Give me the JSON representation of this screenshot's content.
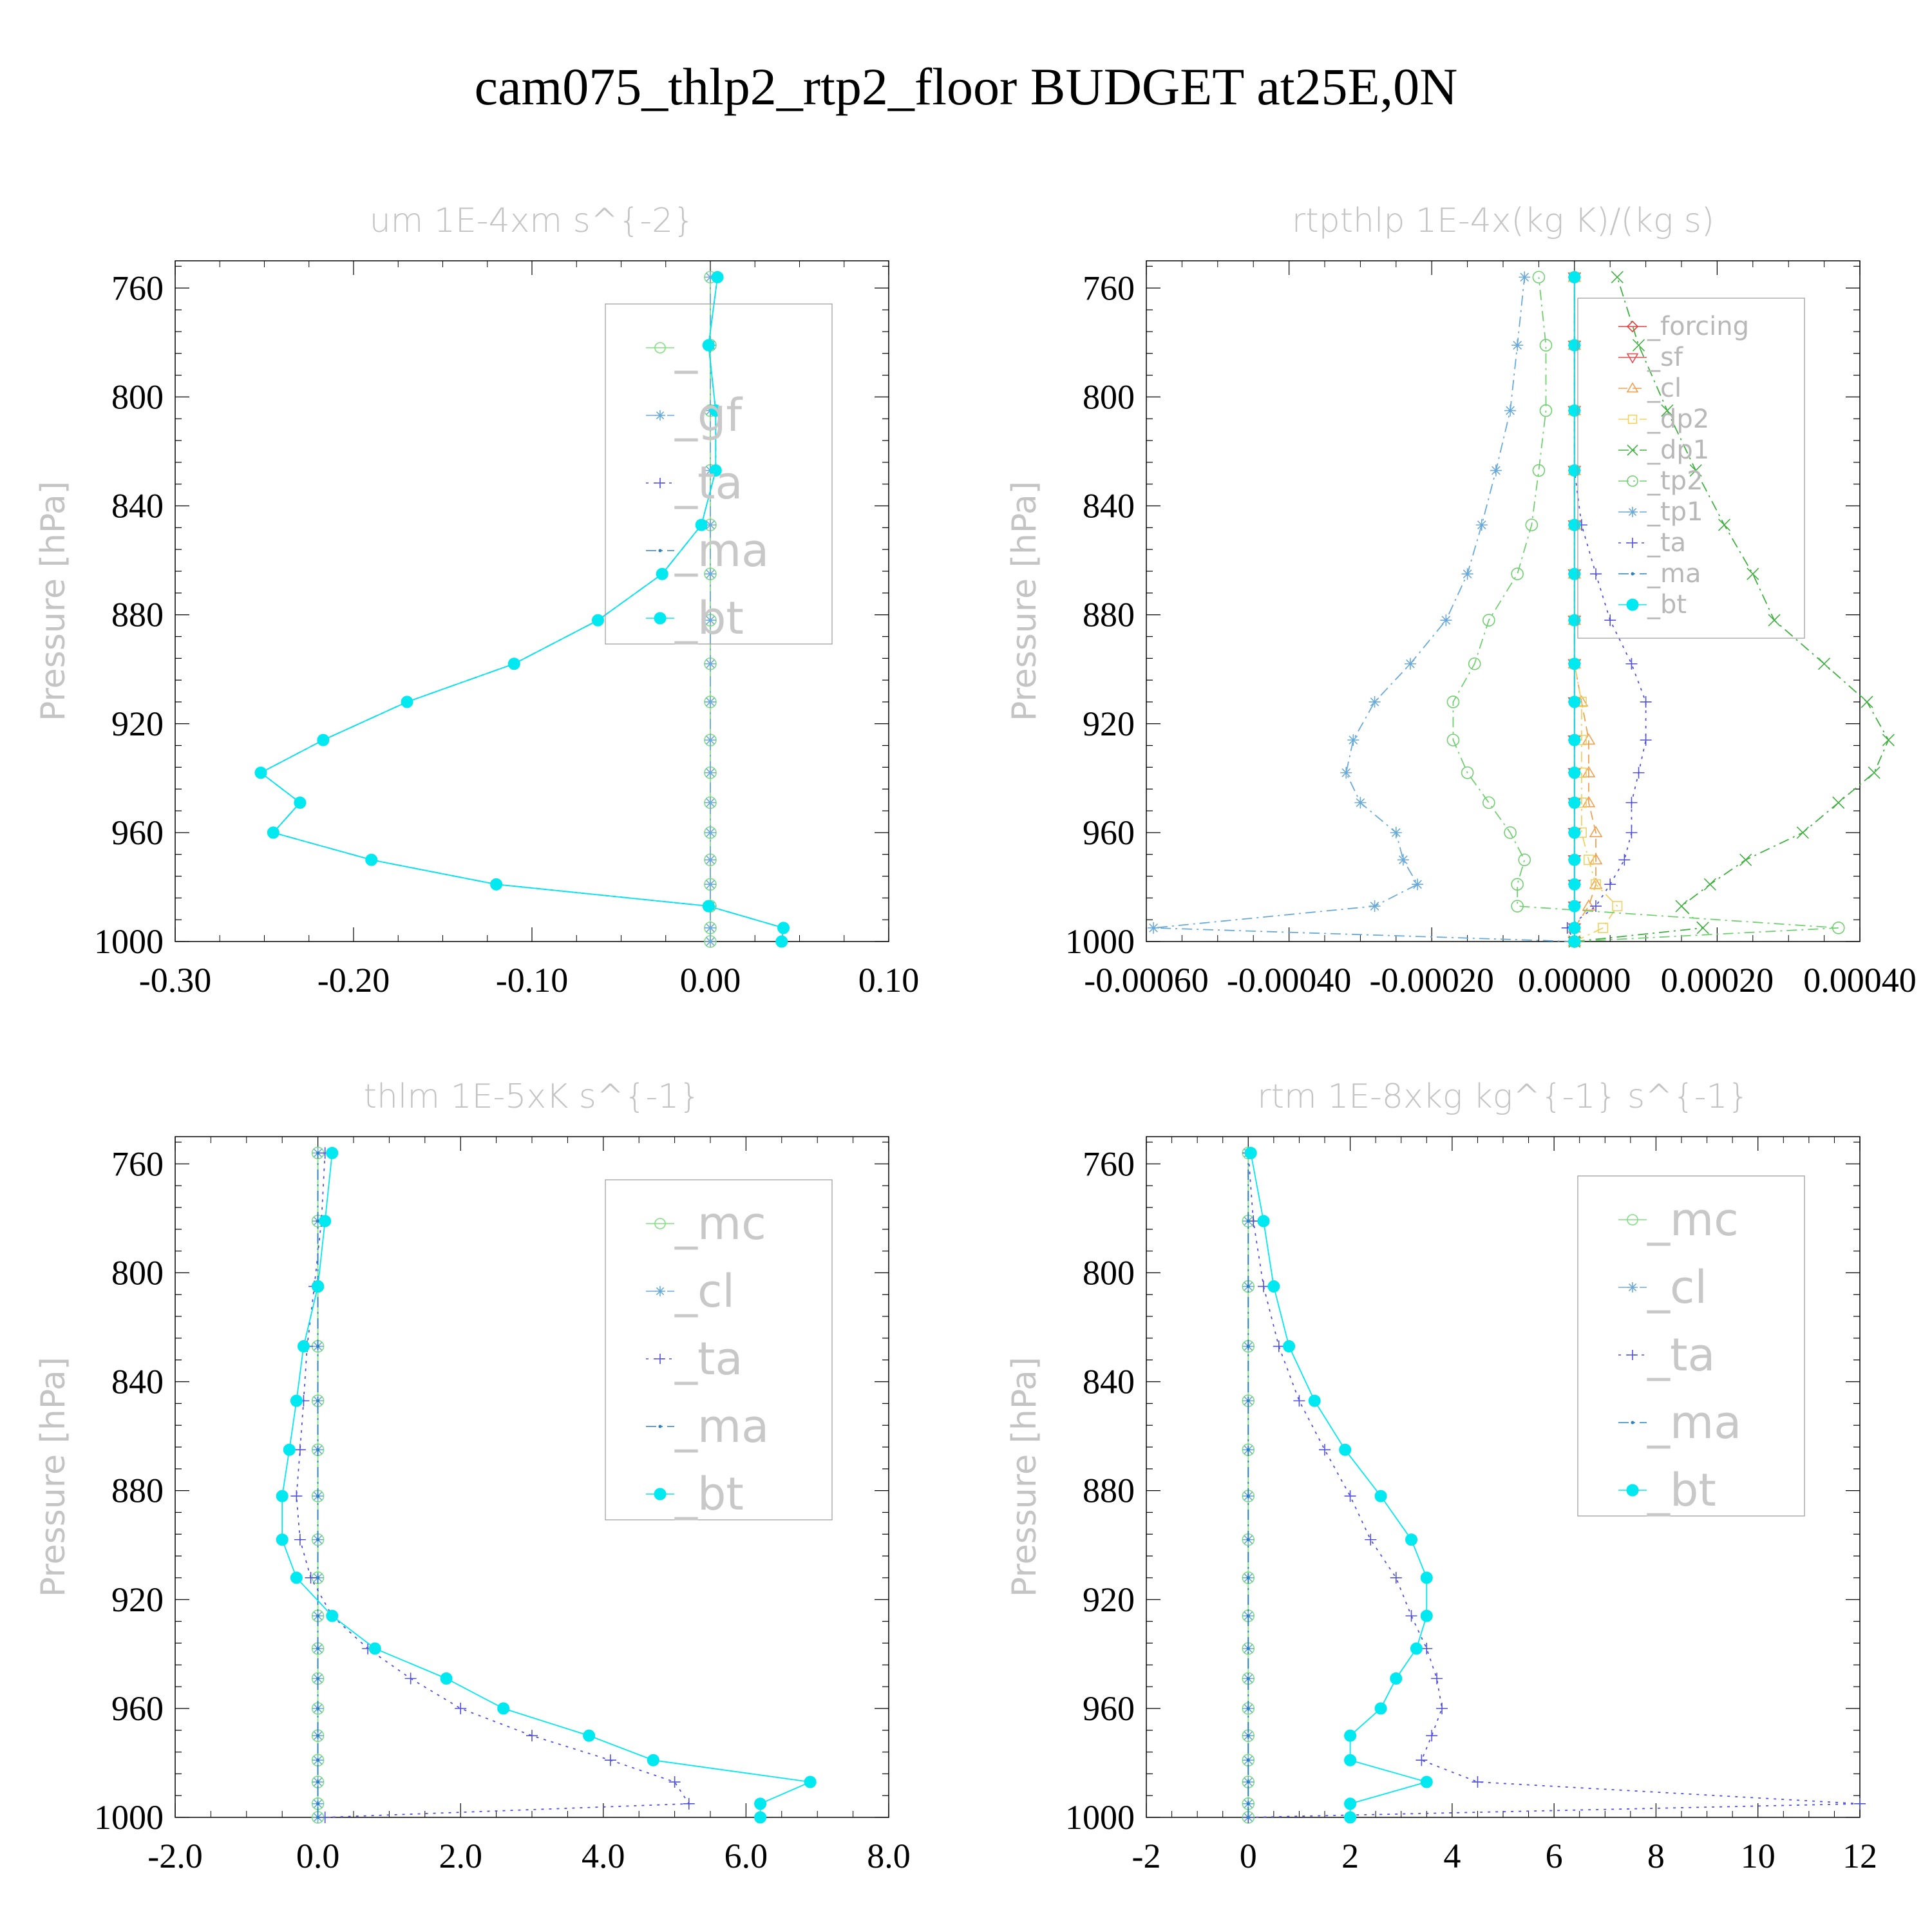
{
  "title": "cam075_thlp2_rtp2_floor  BUDGET at25E,0N",
  "chart_data": [
    {
      "type": "line",
      "title": "um  1E-4xm s^{-2}",
      "ylabel": "Pressure [hPa]",
      "xlim": [
        -0.3,
        0.1
      ],
      "ylim": [
        1000,
        750
      ],
      "xticks": [
        "-0.30",
        "-0.20",
        "-0.10",
        "0.00",
        "0.10"
      ],
      "xtick_values": [
        -0.3,
        -0.2,
        -0.1,
        0.0,
        0.1
      ],
      "yticks": [
        "760",
        "800",
        "840",
        "880",
        "920",
        "960",
        "1000"
      ],
      "yminor_step": 8,
      "legend_style": "big",
      "legend": [
        "_",
        "_gf",
        "_ta",
        "_ma",
        "_bt"
      ],
      "y": [
        1000,
        995,
        987,
        979,
        970,
        960,
        949,
        938,
        926,
        912,
        898,
        882,
        865,
        847,
        827,
        805,
        781,
        756
      ],
      "series": [
        {
          "name": "_",
          "color": "#80e080",
          "marker": "circle-open",
          "dash": "solid",
          "values": [
            0,
            0,
            0,
            0,
            0,
            0,
            0,
            0,
            0,
            0,
            0,
            0,
            0,
            0,
            0,
            0,
            0,
            0
          ]
        },
        {
          "name": "_gf",
          "color": "#6aaad8",
          "marker": "asterisk",
          "dash": "dashdot",
          "values": [
            0,
            0,
            0,
            0,
            0,
            0,
            0,
            0,
            0,
            0,
            0,
            0,
            0,
            0,
            0,
            0,
            0,
            0
          ]
        },
        {
          "name": "_ta",
          "color": "#5050e0",
          "marker": "plus",
          "dash": "dot",
          "values": [
            0.04,
            0.041,
            -0.001,
            -0.12,
            -0.19,
            -0.245,
            -0.23,
            -0.252,
            -0.217,
            -0.17,
            -0.11,
            -0.063,
            -0.027,
            -0.005,
            0.003,
            0.003,
            -0.001,
            0.004
          ]
        },
        {
          "name": "_ma",
          "color": "#2a80c0",
          "marker": "dot",
          "dash": "dashdot",
          "values": [
            0.04,
            0.041,
            -0.001,
            -0.12,
            -0.19,
            -0.245,
            -0.23,
            -0.252,
            -0.217,
            -0.17,
            -0.11,
            -0.063,
            -0.027,
            -0.005,
            0.003,
            0.003,
            -0.001,
            0.004
          ]
        },
        {
          "name": "_bt",
          "color": "#00e8f0",
          "marker": "filled",
          "dash": "solid",
          "values": [
            0.04,
            0.041,
            -0.001,
            -0.12,
            -0.19,
            -0.245,
            -0.23,
            -0.252,
            -0.217,
            -0.17,
            -0.11,
            -0.063,
            -0.027,
            -0.005,
            0.003,
            0.003,
            -0.001,
            0.004
          ]
        }
      ]
    },
    {
      "type": "line",
      "title": "rtpthlp  1E-4x(kg K)/(kg s)",
      "ylabel": "Pressure [hPa]",
      "xlim": [
        -0.0006,
        0.0004
      ],
      "ylim": [
        1000,
        750
      ],
      "xticks": [
        "-0.00060",
        "-0.00040",
        "-0.00020",
        "0.00000",
        "0.00020",
        "0.00040"
      ],
      "xtick_values": [
        -0.0006,
        -0.0004,
        -0.0002,
        0.0,
        0.0002,
        0.0004
      ],
      "yticks": [
        "760",
        "800",
        "840",
        "880",
        "920",
        "960",
        "1000"
      ],
      "yminor_step": 8,
      "legend_style": "small",
      "legend": [
        "_forcing",
        "_sf",
        "_cl",
        "_dp2",
        "_dp1",
        "_tp2",
        "_tp1",
        "_ta",
        "_ma",
        "_bt"
      ],
      "y": [
        1000,
        995,
        987,
        979,
        970,
        960,
        949,
        938,
        926,
        912,
        898,
        882,
        865,
        847,
        827,
        805,
        781,
        756
      ],
      "series": [
        {
          "name": "_forcing",
          "color": "#e04040",
          "marker": "diamond",
          "dash": "solid",
          "values": [
            0,
            0,
            0,
            0,
            0,
            0,
            0,
            0,
            0,
            0,
            0,
            0,
            0,
            0,
            0,
            0,
            0,
            0
          ]
        },
        {
          "name": "_sf",
          "color": "#e05050",
          "marker": "tri-down",
          "dash": "solid",
          "values": [
            0,
            0,
            0,
            0,
            0,
            0,
            0,
            0,
            0,
            0,
            0,
            0,
            0,
            0,
            0,
            0,
            0,
            0
          ]
        },
        {
          "name": "_cl",
          "color": "#f0a050",
          "marker": "tri-up",
          "dash": "dash",
          "values": [
            0,
            0,
            2e-05,
            3e-05,
            3e-05,
            3e-05,
            2e-05,
            2e-05,
            2e-05,
            1e-05,
            0,
            0,
            0,
            0,
            0,
            0,
            0,
            0
          ]
        },
        {
          "name": "_dp2",
          "color": "#f0d060",
          "marker": "square",
          "dash": "dashdot",
          "values": [
            0,
            4e-05,
            6e-05,
            3e-05,
            2e-05,
            1e-05,
            1e-05,
            1e-05,
            1e-05,
            1e-05,
            0,
            0,
            0,
            0,
            0,
            0,
            0,
            0
          ]
        },
        {
          "name": "_dp1",
          "color": "#40b040",
          "marker": "x",
          "dash": "dashdot",
          "values": [
            0,
            0.00018,
            0.00015,
            0.00019,
            0.00024,
            0.00032,
            0.00037,
            0.00042,
            0.00044,
            0.00041,
            0.00035,
            0.00028,
            0.00025,
            0.00021,
            0.00017,
            0.00013,
            9e-05,
            6e-05
          ]
        },
        {
          "name": "_tp2",
          "color": "#70d070",
          "marker": "circle-open",
          "dash": "dashdot",
          "values": [
            0,
            0.00037,
            -8e-05,
            -8e-05,
            -7e-05,
            -9e-05,
            -0.00012,
            -0.00015,
            -0.00017,
            -0.00017,
            -0.00014,
            -0.00012,
            -8e-05,
            -6e-05,
            -5e-05,
            -4e-05,
            -4e-05,
            -5e-05
          ]
        },
        {
          "name": "_tp1",
          "color": "#6aaad8",
          "marker": "asterisk",
          "dash": "dashdot",
          "values": [
            0,
            -0.00059,
            -0.00028,
            -0.00022,
            -0.00024,
            -0.00025,
            -0.0003,
            -0.00032,
            -0.00031,
            -0.00028,
            -0.00023,
            -0.00018,
            -0.00015,
            -0.00013,
            -0.00011,
            -9e-05,
            -8e-05,
            -7e-05
          ]
        },
        {
          "name": "_ta",
          "color": "#5050e0",
          "marker": "plus",
          "dash": "dot",
          "values": [
            0,
            -1e-05,
            3e-05,
            5e-05,
            7e-05,
            8e-05,
            8e-05,
            9e-05,
            0.0001,
            0.0001,
            8e-05,
            5e-05,
            3e-05,
            1e-05,
            0,
            0,
            0,
            0
          ]
        },
        {
          "name": "_ma",
          "color": "#2a80c0",
          "marker": "dot",
          "dash": "dashdot",
          "values": [
            0,
            0,
            0,
            0,
            0,
            0,
            0,
            0,
            0,
            0,
            0,
            0,
            0,
            0,
            0,
            0,
            0,
            0
          ]
        },
        {
          "name": "_bt",
          "color": "#00e8f0",
          "marker": "filled",
          "dash": "solid",
          "values": [
            0,
            0,
            0,
            0,
            0,
            0,
            0,
            0,
            0,
            0,
            0,
            0,
            0,
            0,
            0,
            0,
            0,
            0
          ]
        }
      ]
    },
    {
      "type": "line",
      "title": "thlm  1E-5xK s^{-1}",
      "ylabel": "Pressure [hPa]",
      "xlim": [
        -2,
        8
      ],
      "ylim": [
        1000,
        750
      ],
      "xticks": [
        "-2.0",
        "0.0",
        "2.0",
        "4.0",
        "6.0",
        "8.0"
      ],
      "xtick_values": [
        -2,
        0,
        2,
        4,
        6,
        8
      ],
      "yticks": [
        "760",
        "800",
        "840",
        "880",
        "920",
        "960",
        "1000"
      ],
      "yminor_step": 8,
      "legend_style": "big",
      "legend": [
        "_mc",
        "_cl",
        "_ta",
        "_ma",
        "_bt"
      ],
      "y": [
        1000,
        995,
        987,
        979,
        970,
        960,
        949,
        938,
        926,
        912,
        898,
        882,
        865,
        847,
        827,
        805,
        781,
        756
      ],
      "series": [
        {
          "name": "_mc",
          "color": "#80e080",
          "marker": "circle-open",
          "dash": "solid",
          "values": [
            0,
            0,
            0,
            0,
            0,
            0,
            0,
            0,
            0,
            0,
            0,
            0,
            0,
            0,
            0,
            0,
            0,
            0
          ]
        },
        {
          "name": "_cl",
          "color": "#6aaad8",
          "marker": "asterisk",
          "dash": "dashdot",
          "values": [
            0,
            0,
            0,
            0,
            0,
            0,
            0,
            0,
            0,
            0,
            0,
            0,
            0,
            0,
            0,
            0,
            0,
            0
          ]
        },
        {
          "name": "_ta",
          "color": "#5050e0",
          "marker": "plus",
          "dash": "dot",
          "values": [
            0.1,
            5.2,
            5.0,
            4.1,
            3.0,
            2.0,
            1.3,
            0.7,
            0.2,
            -0.1,
            -0.25,
            -0.3,
            -0.25,
            -0.2,
            -0.15,
            -0.05,
            0.05,
            0.1
          ]
        },
        {
          "name": "_ma",
          "color": "#2a80c0",
          "marker": "dot",
          "dash": "dashdot",
          "values": [
            0,
            0,
            0,
            0,
            0,
            0,
            0,
            0,
            0,
            0,
            0,
            0,
            0,
            0,
            0,
            0,
            0,
            0
          ]
        },
        {
          "name": "_bt",
          "color": "#00e8f0",
          "marker": "filled",
          "dash": "solid",
          "values": [
            6.2,
            6.2,
            6.9,
            4.7,
            3.8,
            2.6,
            1.8,
            0.8,
            0.2,
            -0.3,
            -0.5,
            -0.5,
            -0.4,
            -0.3,
            -0.2,
            0,
            0.1,
            0.2
          ]
        }
      ]
    },
    {
      "type": "line",
      "title": "rtm  1E-8xkg kg^{-1} s^{-1}",
      "ylabel": "Pressure [hPa]",
      "xlim": [
        -2,
        12
      ],
      "ylim": [
        1000,
        750
      ],
      "xticks": [
        "-2",
        "0",
        "2",
        "4",
        "6",
        "8",
        "10",
        "12"
      ],
      "xtick_values": [
        -2,
        0,
        2,
        4,
        6,
        8,
        10,
        12
      ],
      "yticks": [
        "760",
        "800",
        "840",
        "880",
        "920",
        "960",
        "1000"
      ],
      "yminor_step": 8,
      "legend_style": "big",
      "legend": [
        "_mc",
        "_cl",
        "_ta",
        "_ma",
        "_bt"
      ],
      "y": [
        1000,
        995,
        987,
        979,
        970,
        960,
        949,
        938,
        926,
        912,
        898,
        882,
        865,
        847,
        827,
        805,
        781,
        756
      ],
      "series": [
        {
          "name": "_mc",
          "color": "#80e080",
          "marker": "circle-open",
          "dash": "solid",
          "values": [
            0,
            0,
            0,
            0,
            0,
            0,
            0,
            0,
            0,
            0,
            0,
            0,
            0,
            0,
            0,
            0,
            0,
            0
          ]
        },
        {
          "name": "_cl",
          "color": "#6aaad8",
          "marker": "asterisk",
          "dash": "dashdot",
          "values": [
            0,
            0,
            0,
            0,
            0,
            0,
            0,
            0,
            0,
            0,
            0,
            0,
            0,
            0,
            0,
            0,
            0,
            0
          ]
        },
        {
          "name": "_ta",
          "color": "#5050e0",
          "marker": "plus",
          "dash": "dot",
          "values": [
            0,
            12,
            4.5,
            3.4,
            3.6,
            3.8,
            3.7,
            3.5,
            3.2,
            2.9,
            2.4,
            2.0,
            1.5,
            1.0,
            0.6,
            0.3,
            0.1,
            0
          ]
        },
        {
          "name": "_ma",
          "color": "#2a80c0",
          "marker": "dot",
          "dash": "dashdot",
          "values": [
            0,
            0,
            0,
            0,
            0,
            0,
            0,
            0,
            0,
            0,
            0,
            0,
            0,
            0,
            0,
            0,
            0,
            0
          ]
        },
        {
          "name": "_bt",
          "color": "#00e8f0",
          "marker": "filled",
          "dash": "solid",
          "values": [
            2.0,
            2.0,
            3.5,
            2.0,
            2.0,
            2.6,
            2.9,
            3.3,
            3.5,
            3.5,
            3.2,
            2.6,
            1.9,
            1.3,
            0.8,
            0.5,
            0.3,
            0.05
          ]
        }
      ]
    }
  ]
}
